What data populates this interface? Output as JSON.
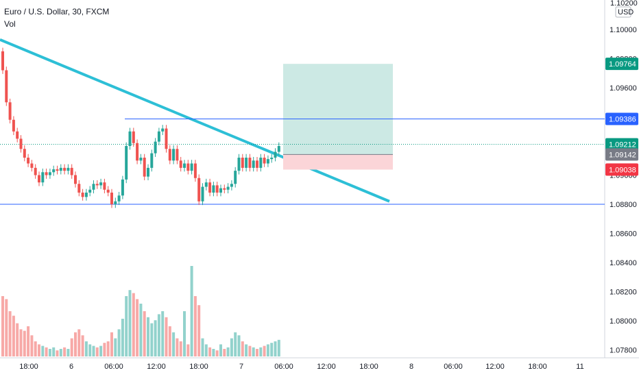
{
  "legend": {
    "symbol_line": "Euro / U.S. Dollar, 30, FXCM",
    "volume_label": "Vol"
  },
  "price_axis": {
    "currency": "USD",
    "top_partial_label": "1.10200",
    "tick_labels": [
      "1.10000",
      "1.09800",
      "1.09600",
      "1.09400",
      "1.09200",
      "1.09000",
      "1.08800",
      "1.08600",
      "1.08400",
      "1.08200",
      "1.08000",
      "1.07800"
    ],
    "tick_values": [
      1.1,
      1.098,
      1.096,
      1.094,
      1.092,
      1.09,
      1.088,
      1.086,
      1.084,
      1.082,
      1.08,
      1.078
    ]
  },
  "price_tags": [
    {
      "label": "1.09764",
      "value": 1.09764,
      "color": "#089981"
    },
    {
      "label": "1.09386",
      "value": 1.09386,
      "color": "#2962ff"
    },
    {
      "label": "1.09212",
      "value": 1.09212,
      "color": "#089981"
    },
    {
      "label": "1.09142",
      "value": 1.09142,
      "color": "#787b86"
    },
    {
      "label": "1.09038",
      "value": 1.09038,
      "color": "#f23645"
    }
  ],
  "time_axis": {
    "labels": [
      "18:00",
      "6",
      "06:00",
      "12:00",
      "18:00",
      "7",
      "06:00",
      "12:00",
      "18:00",
      "8",
      "06:00",
      "12:00",
      "18:00",
      "11"
    ]
  },
  "horizontal_lines": [
    {
      "value": 1.09386,
      "color": "#2962ff"
    },
    {
      "value": 1.088,
      "color": "#2962ff"
    }
  ],
  "current_price": {
    "value": 1.09212,
    "color": "#089981"
  },
  "trend_line": {
    "start_price": 1.0993,
    "end_price": 1.0882,
    "color": "#2dbfd6"
  },
  "position": {
    "entry": 1.09142,
    "target": 1.09764,
    "stop": 1.09038,
    "profit_color": "#cce9e4",
    "loss_color": "#fbd5d8"
  },
  "candles": {
    "up_color": "#26a69a",
    "down_color": "#ef5350",
    "closes": [
      1.0972,
      1.095,
      1.0938,
      1.093,
      1.0925,
      1.0918,
      1.0912,
      1.0908,
      1.0905,
      1.09,
      1.0895,
      1.0902,
      1.09,
      1.0902,
      1.0904,
      1.0903,
      1.0905,
      1.0903,
      1.0905,
      1.09,
      1.0894,
      1.0888,
      1.0885,
      1.0888,
      1.089,
      1.0894,
      1.0893,
      1.0895,
      1.089,
      1.0888,
      1.088,
      1.0882,
      1.0886,
      1.0897,
      1.092,
      1.093,
      1.0922,
      1.091,
      1.0912,
      1.0899,
      1.0905,
      1.0915,
      1.0923,
      1.093,
      1.0932,
      1.0918,
      1.091,
      1.0918,
      1.091,
      1.0905,
      1.0908,
      1.0903,
      1.0908,
      1.0898,
      1.0882,
      1.0892,
      1.0895,
      1.0888,
      1.0893,
      1.0888,
      1.0891,
      1.089,
      1.0892,
      1.0894,
      1.0903,
      1.0912,
      1.0905,
      1.0912,
      1.0905,
      1.091,
      1.0905,
      1.0912,
      1.0908,
      1.0911,
      1.0912,
      1.0916,
      1.092
    ],
    "volumes": [
      40,
      38,
      30,
      27,
      22,
      18,
      17,
      20,
      14,
      10,
      8,
      7,
      6,
      5,
      6,
      4,
      5,
      6,
      5,
      12,
      16,
      18,
      14,
      10,
      8,
      7,
      6,
      7,
      9,
      10,
      16,
      12,
      18,
      25,
      40,
      44,
      42,
      38,
      35,
      30,
      26,
      22,
      24,
      28,
      30,
      26,
      20,
      16,
      12,
      10,
      30,
      8,
      60,
      40,
      34,
      12,
      8,
      6,
      5,
      4,
      8,
      5,
      6,
      12,
      16,
      14,
      10,
      8,
      7,
      6,
      5,
      6,
      7,
      8,
      9,
      10,
      11
    ]
  }
}
